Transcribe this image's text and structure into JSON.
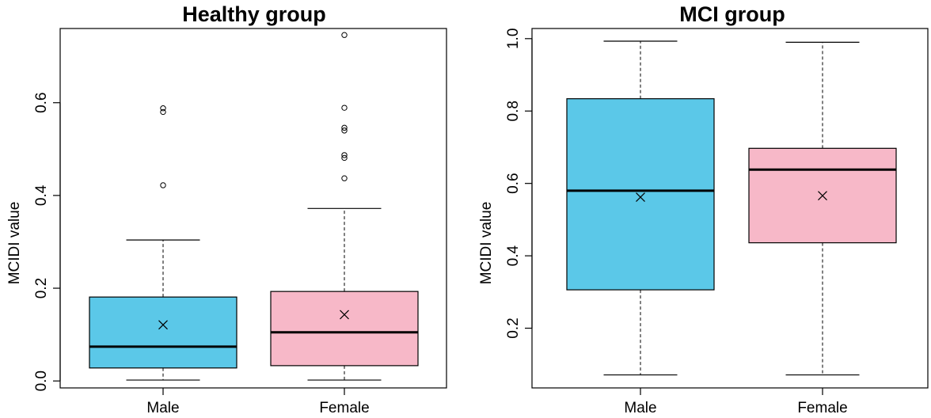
{
  "colors": {
    "male": "#5bc8e8",
    "female": "#f7b8c8",
    "stroke": "#000000"
  },
  "chart_data": [
    {
      "type": "box",
      "title": "Healthy group",
      "xlabel": "",
      "ylabel": "MCIDI value",
      "ylim": [
        -0.015,
        0.76
      ],
      "yticks": [
        0.0,
        0.2,
        0.4,
        0.6
      ],
      "ytick_labels": [
        "0.0",
        "0.2",
        "0.4",
        "0.6"
      ],
      "categories": [
        "Male",
        "Female"
      ],
      "boxes": [
        {
          "name": "Male",
          "whisker_low": 0.002,
          "q1": 0.028,
          "median": 0.074,
          "q3": 0.181,
          "whisker_high": 0.304,
          "mean": 0.121,
          "outliers": [
            0.422,
            0.58,
            0.588
          ]
        },
        {
          "name": "Female",
          "whisker_low": 0.002,
          "q1": 0.033,
          "median": 0.105,
          "q3": 0.193,
          "whisker_high": 0.372,
          "mean": 0.143,
          "outliers": [
            0.437,
            0.481,
            0.487,
            0.54,
            0.546,
            0.589,
            0.746
          ]
        }
      ]
    },
    {
      "type": "box",
      "title": "MCI group",
      "xlabel": "",
      "ylabel": "MCIDI value",
      "ylim": [
        0.035,
        1.028
      ],
      "yticks": [
        0.2,
        0.4,
        0.6,
        0.8,
        1.0
      ],
      "ytick_labels": [
        "0.2",
        "0.4",
        "0.6",
        "0.8",
        "1.0"
      ],
      "categories": [
        "Male",
        "Female"
      ],
      "boxes": [
        {
          "name": "Male",
          "whisker_low": 0.071,
          "q1": 0.306,
          "median": 0.58,
          "q3": 0.834,
          "whisker_high": 0.993,
          "mean": 0.562,
          "outliers": []
        },
        {
          "name": "Female",
          "whisker_low": 0.071,
          "q1": 0.436,
          "median": 0.638,
          "q3": 0.697,
          "whisker_high": 0.99,
          "mean": 0.566,
          "outliers": []
        }
      ]
    }
  ]
}
